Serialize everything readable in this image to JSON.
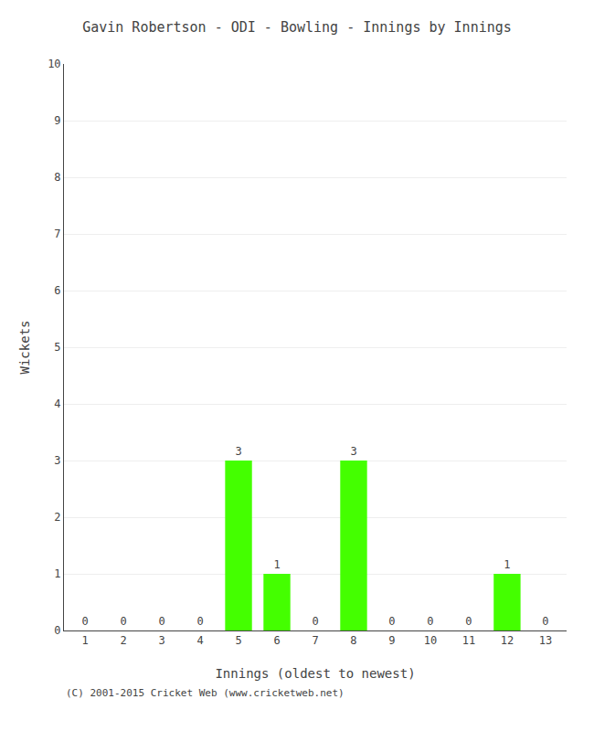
{
  "chart_data": {
    "type": "bar",
    "title": "Gavin Robertson - ODI - Bowling - Innings by Innings",
    "xlabel": "Innings (oldest to newest)",
    "ylabel": "Wickets",
    "categories": [
      1,
      2,
      3,
      4,
      5,
      6,
      7,
      8,
      9,
      10,
      11,
      12,
      13
    ],
    "values": [
      0,
      0,
      0,
      0,
      3,
      1,
      0,
      3,
      0,
      0,
      0,
      1,
      0
    ],
    "color": "#44ff00",
    "ylim": [
      0,
      10
    ],
    "yticks": [
      0,
      1,
      2,
      3,
      4,
      5,
      6,
      7,
      8,
      9,
      10
    ],
    "grid": true,
    "data_labels": true,
    "annotations": [
      "(C) 2001-2015 Cricket Web (www.cricketweb.net)"
    ]
  }
}
